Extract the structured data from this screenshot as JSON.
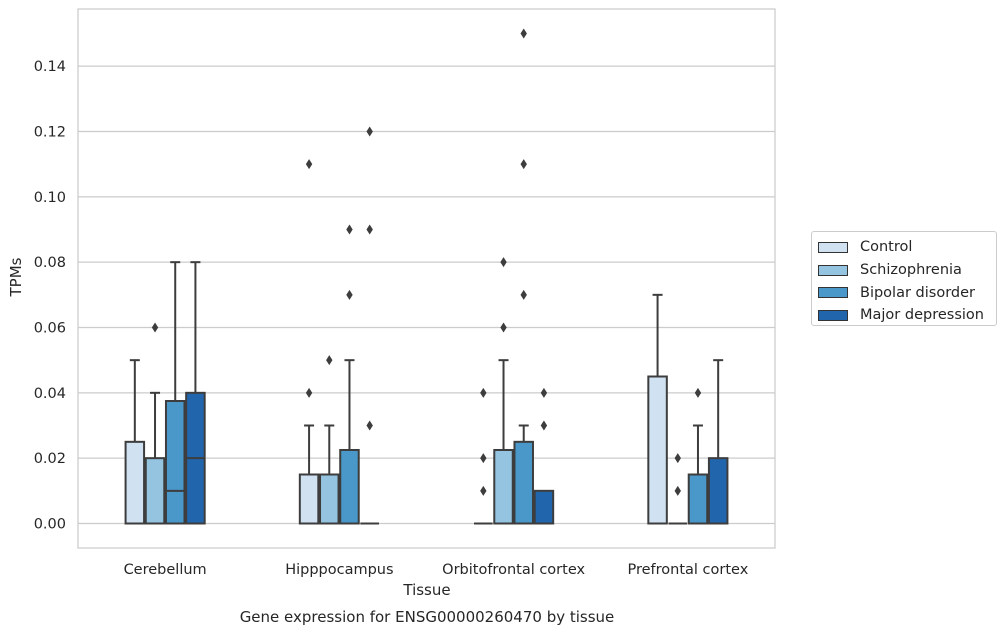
{
  "chart_data": {
    "type": "box",
    "title": "Gene expression for ENSG00000260470 by tissue",
    "xlabel": "Tissue",
    "ylabel": "TPMs",
    "ylim": [
      -0.0075,
      0.1575
    ],
    "yticks": [
      0.0,
      0.02,
      0.04,
      0.06,
      0.08,
      0.1,
      0.12,
      0.14
    ],
    "ytick_labels": [
      "0.00",
      "0.02",
      "0.04",
      "0.06",
      "0.08",
      "0.10",
      "0.12",
      "0.14"
    ],
    "grid": true,
    "legend_position": "outside-right",
    "categories": [
      "Cerebellum",
      "Hipppocampus",
      "Orbitofrontal cortex",
      "Prefrontal cortex"
    ],
    "series": [
      {
        "name": "Control",
        "color": "#d0e1f2",
        "boxes": [
          {
            "q1": 0.0,
            "median": 0.0,
            "q3": 0.025,
            "whisker_low": 0.0,
            "whisker_high": 0.05,
            "outliers": []
          },
          {
            "q1": 0.0,
            "median": 0.0,
            "q3": 0.015,
            "whisker_low": 0.0,
            "whisker_high": 0.03,
            "outliers": [
              0.04,
              0.11
            ]
          },
          {
            "q1": 0.0,
            "median": 0.0,
            "q3": 0.0,
            "whisker_low": 0.0,
            "whisker_high": 0.0,
            "outliers": [
              0.01,
              0.02,
              0.04
            ]
          },
          {
            "q1": 0.0,
            "median": 0.0,
            "q3": 0.045,
            "whisker_low": 0.0,
            "whisker_high": 0.07,
            "outliers": []
          }
        ]
      },
      {
        "name": "Schizophrenia",
        "color": "#94c4df",
        "boxes": [
          {
            "q1": 0.0,
            "median": 0.0,
            "q3": 0.02,
            "whisker_low": 0.0,
            "whisker_high": 0.04,
            "outliers": [
              0.06
            ]
          },
          {
            "q1": 0.0,
            "median": 0.0,
            "q3": 0.015,
            "whisker_low": 0.0,
            "whisker_high": 0.03,
            "outliers": [
              0.05
            ]
          },
          {
            "q1": 0.0,
            "median": 0.0,
            "q3": 0.0225,
            "whisker_low": 0.0,
            "whisker_high": 0.05,
            "outliers": [
              0.06,
              0.08
            ]
          },
          {
            "q1": 0.0,
            "median": 0.0,
            "q3": 0.0,
            "whisker_low": 0.0,
            "whisker_high": 0.0,
            "outliers": [
              0.01,
              0.02
            ]
          }
        ]
      },
      {
        "name": "Bipolar disorder",
        "color": "#4a98c9",
        "boxes": [
          {
            "q1": 0.0,
            "median": 0.01,
            "q3": 0.0375,
            "whisker_low": 0.0,
            "whisker_high": 0.08,
            "outliers": []
          },
          {
            "q1": 0.0,
            "median": 0.0,
            "q3": 0.0225,
            "whisker_low": 0.0,
            "whisker_high": 0.05,
            "outliers": [
              0.07,
              0.09
            ]
          },
          {
            "q1": 0.0,
            "median": 0.0,
            "q3": 0.025,
            "whisker_low": 0.0,
            "whisker_high": 0.03,
            "outliers": [
              0.07,
              0.11,
              0.15
            ]
          },
          {
            "q1": 0.0,
            "median": 0.0,
            "q3": 0.015,
            "whisker_low": 0.0,
            "whisker_high": 0.03,
            "outliers": [
              0.04
            ]
          }
        ]
      },
      {
        "name": "Major depression",
        "color": "#2166ac",
        "boxes": [
          {
            "q1": 0.0,
            "median": 0.02,
            "q3": 0.04,
            "whisker_low": 0.0,
            "whisker_high": 0.08,
            "outliers": []
          },
          {
            "q1": 0.0,
            "median": 0.0,
            "q3": 0.0,
            "whisker_low": 0.0,
            "whisker_high": 0.0,
            "outliers": [
              0.03,
              0.09,
              0.12
            ]
          },
          {
            "q1": 0.0,
            "median": 0.0,
            "q3": 0.01,
            "whisker_low": 0.0,
            "whisker_high": 0.01,
            "outliers": [
              0.03,
              0.04
            ]
          },
          {
            "q1": 0.0,
            "median": 0.0,
            "q3": 0.02,
            "whisker_low": 0.0,
            "whisker_high": 0.05,
            "outliers": []
          }
        ]
      }
    ]
  }
}
